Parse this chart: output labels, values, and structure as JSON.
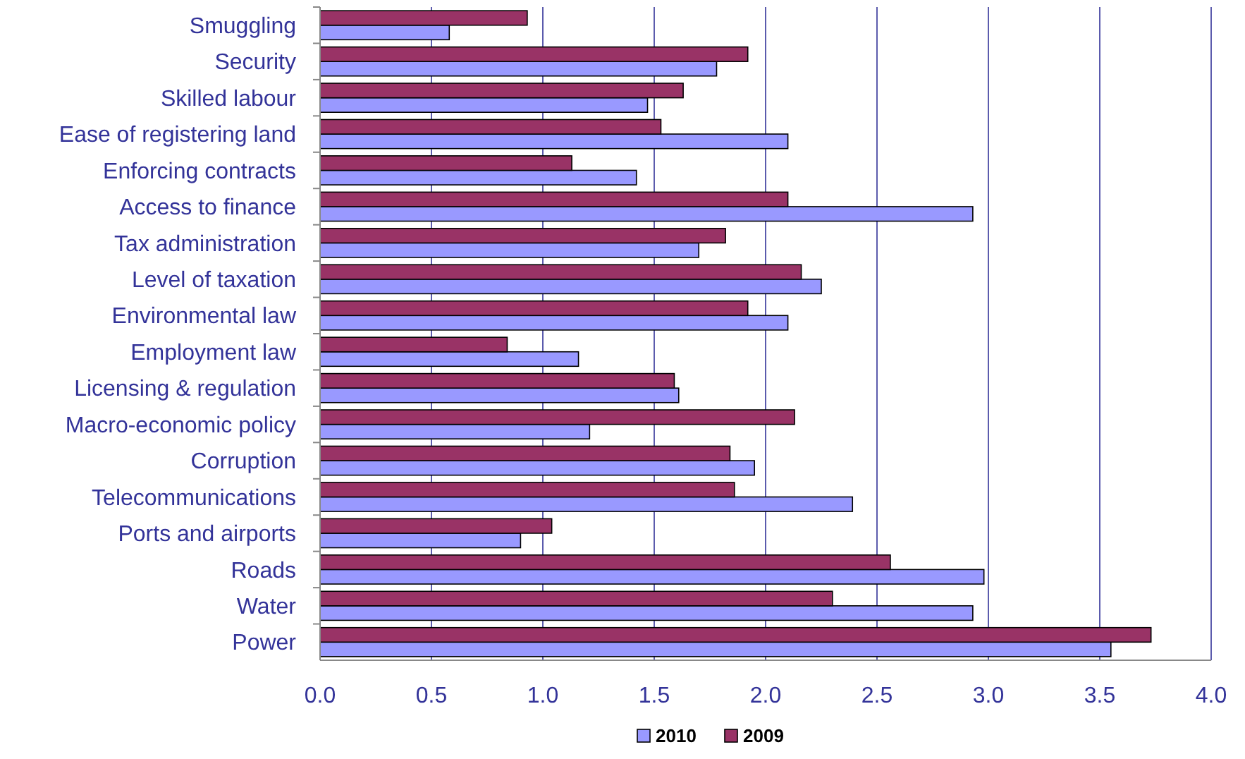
{
  "chart_data": {
    "type": "bar",
    "orientation": "horizontal",
    "categories": [
      "Smuggling",
      "Security",
      "Skilled labour",
      "Ease of registering land",
      "Enforcing contracts",
      "Access to finance",
      "Tax administration",
      "Level of taxation",
      "Environmental law",
      "Employment law",
      "Licensing & regulation",
      "Macro-economic policy",
      "Corruption",
      "Telecommunications",
      "Ports and airports",
      "Roads",
      "Water",
      "Power"
    ],
    "series": [
      {
        "name": "2010",
        "color": "#9999ff",
        "values": [
          0.58,
          1.78,
          1.47,
          2.1,
          1.42,
          2.93,
          1.7,
          2.25,
          2.1,
          1.16,
          1.61,
          1.21,
          1.95,
          2.39,
          0.9,
          2.98,
          2.93,
          3.55
        ]
      },
      {
        "name": "2009",
        "color": "#993366",
        "values": [
          0.93,
          1.92,
          1.63,
          1.53,
          1.13,
          2.1,
          1.82,
          2.16,
          1.92,
          0.84,
          1.59,
          2.13,
          1.84,
          1.86,
          1.04,
          2.56,
          2.3,
          3.73
        ]
      }
    ],
    "xlim": [
      0,
      4
    ],
    "xticks": [
      {
        "value": 0,
        "label": "0.0"
      },
      {
        "value": 0.5,
        "label": "0.5"
      },
      {
        "value": 1,
        "label": "1.0"
      },
      {
        "value": 1.5,
        "label": "1.5"
      },
      {
        "value": 2,
        "label": "2.0"
      },
      {
        "value": 2.5,
        "label": "2.5"
      },
      {
        "value": 3,
        "label": "3.0"
      },
      {
        "value": 3.5,
        "label": "3.5"
      },
      {
        "value": 4,
        "label": "4.0"
      }
    ],
    "grid": "x",
    "legend": "bottom"
  }
}
